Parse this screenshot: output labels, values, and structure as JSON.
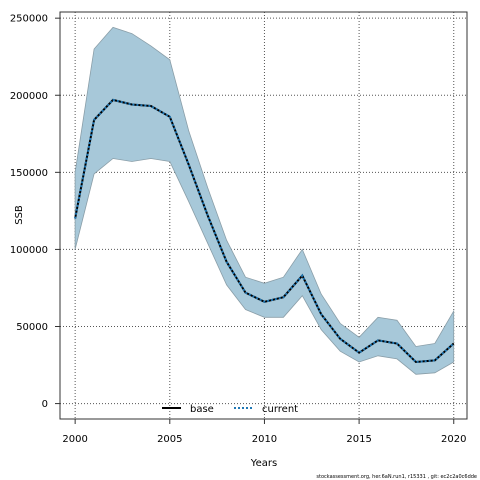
{
  "chart_data": {
    "type": "area",
    "xlabel": "Years",
    "ylabel": "SSB",
    "x": [
      2000,
      2001,
      2002,
      2003,
      2004,
      2005,
      2006,
      2007,
      2008,
      2009,
      2010,
      2011,
      2012,
      2013,
      2014,
      2015,
      2016,
      2017,
      2018,
      2019,
      2020
    ],
    "series": [
      {
        "name": "current",
        "style": "dotted",
        "values": [
          120000,
          184000,
          197000,
          194000,
          193000,
          186000,
          155000,
          122000,
          92000,
          72000,
          66000,
          69000,
          83000,
          58000,
          42000,
          33000,
          41000,
          39000,
          27000,
          28000,
          39000
        ]
      }
    ],
    "confidence_band": {
      "lower": [
        100000,
        149000,
        159000,
        157000,
        159000,
        157000,
        131000,
        104000,
        77000,
        61000,
        56000,
        56000,
        70000,
        48000,
        34000,
        27000,
        31000,
        29000,
        19000,
        20000,
        27000
      ],
      "upper": [
        150000,
        230000,
        244000,
        240000,
        232000,
        223000,
        177000,
        140000,
        106000,
        82000,
        78000,
        82000,
        100000,
        71000,
        52000,
        43000,
        56000,
        54000,
        37000,
        39000,
        60000
      ]
    },
    "legend": [
      "base",
      "current"
    ],
    "legend_position": "bottom",
    "xticks": [
      2000,
      2005,
      2010,
      2015,
      2020
    ],
    "yticks": [
      0,
      50000,
      100000,
      150000,
      200000,
      250000
    ],
    "xlim": [
      1999.2,
      2020.7
    ],
    "ylim": [
      -10000,
      254000
    ],
    "grid": true,
    "colors": {
      "band_fill": "#a7c8d9",
      "band_stroke": "#8a9ea8",
      "line": "#000000",
      "current_line": "#1f77b4",
      "grid": "#555555"
    },
    "footer": "stockassessment.org, her.6aN.run1, r15331 , git: ec2c2a0c6dde"
  }
}
